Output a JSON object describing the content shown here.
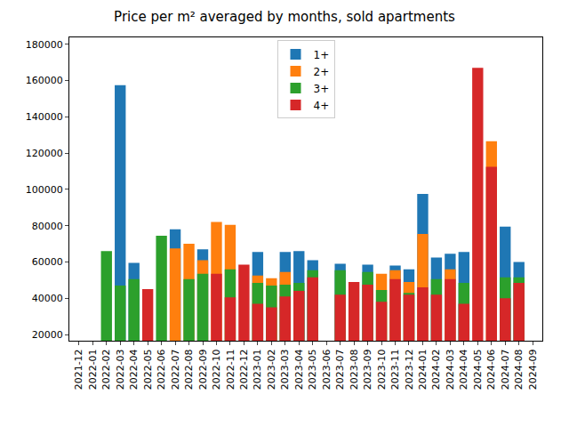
{
  "chart_data": {
    "type": "bar",
    "title": "Price per m² averaged by months, sold apartments",
    "categories": [
      "2021-12",
      "2022-01",
      "2022-02",
      "2022-03",
      "2022-04",
      "2022-05",
      "2022-06",
      "2022-07",
      "2022-08",
      "2022-09",
      "2022-10",
      "2022-11",
      "2022-12",
      "2023-01",
      "2023-02",
      "2023-03",
      "2023-04",
      "2023-05",
      "2023-06",
      "2023-07",
      "2023-08",
      "2023-09",
      "2023-10",
      "2023-11",
      "2023-12",
      "2024-01",
      "2024-02",
      "2024-03",
      "2024-04",
      "2024-05",
      "2024-06",
      "2024-07",
      "2024-08",
      "2024-09"
    ],
    "series": [
      {
        "name": "1+",
        "color": "#1f77b4",
        "values": [
          null,
          null,
          null,
          157500,
          59500,
          null,
          null,
          78000,
          null,
          67000,
          null,
          null,
          null,
          65500,
          null,
          65500,
          66000,
          61000,
          null,
          59000,
          null,
          58500,
          null,
          58000,
          56000,
          97500,
          62500,
          64500,
          65500,
          null,
          null,
          79500,
          60000,
          null
        ]
      },
      {
        "name": "2+",
        "color": "#ff7f0e",
        "values": [
          null,
          null,
          null,
          null,
          null,
          null,
          null,
          67500,
          70000,
          61000,
          82000,
          80500,
          null,
          52500,
          51000,
          54500,
          null,
          null,
          null,
          null,
          null,
          null,
          53500,
          55500,
          49000,
          75500,
          null,
          56000,
          null,
          null,
          126500,
          null,
          null,
          null
        ]
      },
      {
        "name": "3+",
        "color": "#2ca02c",
        "values": [
          null,
          null,
          66000,
          47000,
          50500,
          null,
          74500,
          null,
          50500,
          53500,
          null,
          56000,
          null,
          48500,
          47000,
          47500,
          48500,
          55500,
          null,
          55500,
          null,
          54500,
          44500,
          null,
          43000,
          null,
          50500,
          null,
          48500,
          null,
          null,
          51500,
          51500,
          null
        ]
      },
      {
        "name": "4+",
        "color": "#d62728",
        "values": [
          null,
          null,
          null,
          null,
          null,
          45000,
          null,
          null,
          null,
          null,
          53500,
          40500,
          58500,
          37000,
          35000,
          41000,
          44000,
          51500,
          null,
          42000,
          49000,
          47500,
          38000,
          50500,
          42000,
          46000,
          42000,
          50500,
          37000,
          167000,
          112500,
          40000,
          48500,
          null
        ]
      }
    ],
    "ylim": [
      16600,
      183800
    ],
    "yticks": [
      20000,
      40000,
      60000,
      80000,
      100000,
      120000,
      140000,
      160000,
      180000
    ],
    "legend": "upper center",
    "grid": false,
    "stacked": false
  }
}
